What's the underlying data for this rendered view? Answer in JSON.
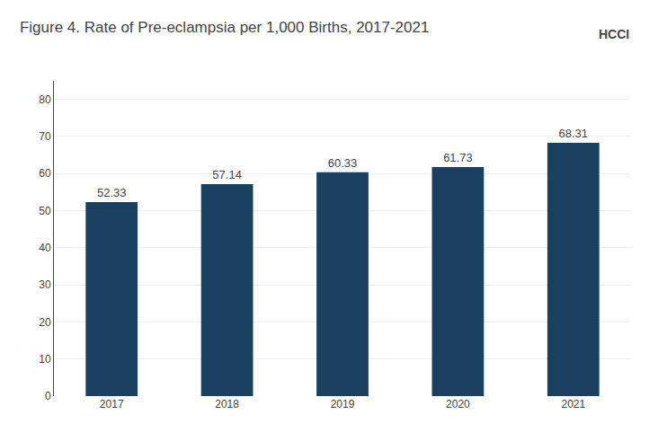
{
  "chart_data": {
    "type": "bar",
    "title": "Figure 4. Rate of Pre-eclampsia per 1,000 Births, 2017-2021",
    "categories": [
      "2017",
      "2018",
      "2019",
      "2020",
      "2021"
    ],
    "values": [
      52.33,
      57.14,
      60.33,
      61.73,
      68.31
    ],
    "color": "#1b3f5e",
    "ylim": [
      0,
      85
    ],
    "yticks": [
      0,
      10,
      20,
      30,
      40,
      50,
      60,
      70,
      80
    ],
    "grid": true,
    "data_labels": true,
    "annotations": [
      "HCCI"
    ]
  }
}
